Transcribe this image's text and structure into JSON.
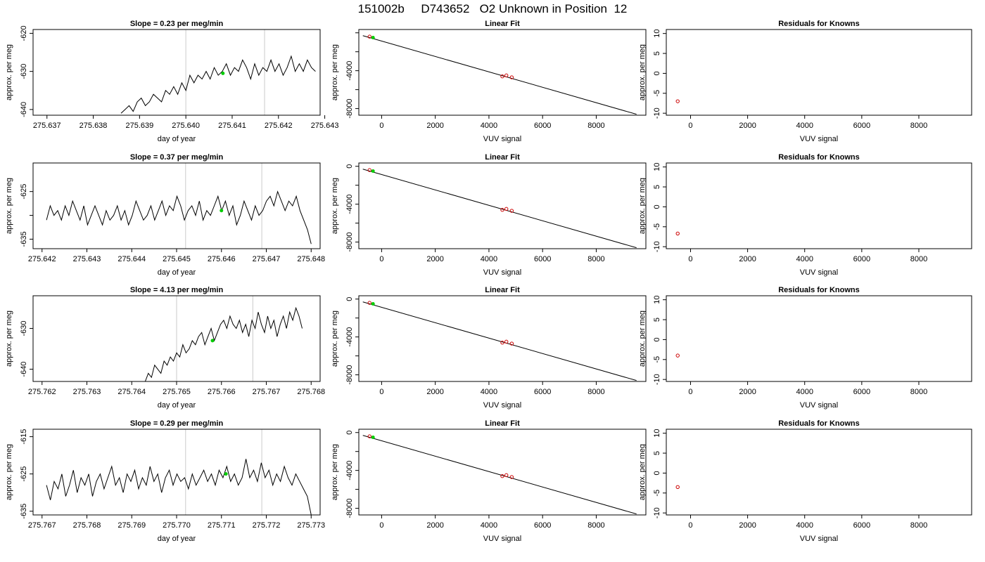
{
  "figure": {
    "title": "151002b     D743652   O2 Unknown in Position  12"
  },
  "chart_data": [
    {
      "type": "line",
      "row": 1,
      "title": "Slope =  0.23  per meg/min",
      "xlabel": "day of year",
      "ylabel": "approx. per meg",
      "xlim": [
        275.6367,
        275.6429
      ],
      "ylim": [
        -641.5,
        -619
      ],
      "xticks": [
        "275.637",
        "275.638",
        "275.639",
        "275.640",
        "275.641",
        "275.642",
        "275.643"
      ],
      "yticks": [
        -640,
        -630,
        -620
      ],
      "yticks_labeled": [
        -640,
        -630,
        -620
      ],
      "vlines": [
        275.64,
        275.6417
      ],
      "highlight": {
        "x": 275.6408,
        "y": -630.5
      },
      "series": [
        {
          "x_start": 275.6386,
          "x_end": 275.6428,
          "values": [
            -641,
            -640,
            -639,
            -640.5,
            -638,
            -637,
            -639,
            -638,
            -636,
            -637,
            -638,
            -635,
            -636,
            -634,
            -636,
            -633,
            -635,
            -631,
            -633,
            -631,
            -632,
            -630,
            -632,
            -629,
            -631,
            -630,
            -628,
            -631,
            -629,
            -630,
            -627,
            -629,
            -632,
            -628,
            -631,
            -629,
            -630,
            -627,
            -630,
            -628,
            -631,
            -629,
            -626,
            -630,
            -628,
            -630,
            -627,
            -629,
            -630
          ]
        }
      ]
    },
    {
      "type": "scatter",
      "row": 1,
      "title": "Linear Fit",
      "xlabel": "VUV signal",
      "ylabel": "approx. per meg",
      "xlim": [
        -850,
        9850
      ],
      "ylim": [
        -8700,
        350
      ],
      "xticks": [
        0,
        2000,
        4000,
        6000,
        8000
      ],
      "yticks": [
        0,
        -2000,
        -4000,
        -6000,
        -8000
      ],
      "yticks_labeled": [
        -4000,
        -8000
      ],
      "fit_line": {
        "x": [
          -700,
          9500
        ],
        "y": [
          -300,
          -8600
        ]
      },
      "points_red": [
        {
          "x": -450,
          "y": -400
        },
        {
          "x": 4500,
          "y": -4600
        },
        {
          "x": 4650,
          "y": -4500
        },
        {
          "x": 4850,
          "y": -4700
        }
      ],
      "points_green": [
        {
          "x": -320,
          "y": -500
        }
      ]
    },
    {
      "type": "scatter",
      "row": 1,
      "title": "Residuals for Knowns",
      "xlabel": "VUV signal",
      "ylabel": "approx. per meg",
      "xlim": [
        -850,
        9850
      ],
      "ylim": [
        -10.5,
        11
      ],
      "xticks": [
        0,
        2000,
        4000,
        6000,
        8000
      ],
      "yticks": [
        10,
        5,
        0,
        -5,
        -10
      ],
      "yticks_labeled": [
        10,
        5,
        0,
        -5,
        -10
      ],
      "points_red": [
        {
          "x": -450,
          "y": -7
        }
      ]
    },
    {
      "type": "line",
      "row": 2,
      "title": "Slope =  0.37  per meg/min",
      "xlabel": "day of year",
      "ylabel": "approx. per meg",
      "xlim": [
        275.6418,
        275.6482
      ],
      "ylim": [
        -637,
        -619
      ],
      "xticks": [
        "275.642",
        "275.643",
        "275.644",
        "275.645",
        "275.646",
        "275.647",
        "275.648"
      ],
      "yticks": [
        -635,
        -630,
        -625
      ],
      "yticks_labeled": [
        -635,
        -625
      ],
      "vlines": [
        275.6452,
        275.6469
      ],
      "highlight": {
        "x": 275.646,
        "y": -629
      },
      "series": [
        {
          "x_start": 275.6421,
          "x_end": 275.648,
          "values": [
            -631,
            -628,
            -630,
            -629,
            -631,
            -628,
            -630,
            -627,
            -629,
            -631,
            -628,
            -632,
            -630,
            -628,
            -630,
            -632,
            -629,
            -631,
            -630,
            -628,
            -631,
            -629,
            -632,
            -630,
            -627,
            -629,
            -631,
            -630,
            -628,
            -631,
            -629,
            -627,
            -630,
            -628,
            -629,
            -626,
            -628,
            -631,
            -629,
            -628,
            -630,
            -627,
            -631,
            -629,
            -630,
            -628,
            -626,
            -629,
            -627,
            -630,
            -628,
            -632,
            -630,
            -627,
            -629,
            -631,
            -628,
            -630,
            -629,
            -627,
            -626,
            -628,
            -625,
            -627,
            -629,
            -627,
            -628,
            -626,
            -629,
            -631,
            -633,
            -636
          ]
        }
      ]
    },
    {
      "type": "scatter",
      "row": 2,
      "title": "Linear Fit",
      "xlabel": "VUV signal",
      "ylabel": "approx. per meg",
      "xlim": [
        -850,
        9850
      ],
      "ylim": [
        -8700,
        350
      ],
      "xticks": [
        0,
        2000,
        4000,
        6000,
        8000
      ],
      "yticks": [
        0,
        -2000,
        -4000,
        -6000,
        -8000
      ],
      "yticks_labeled": [
        0,
        -4000,
        -8000
      ],
      "fit_line": {
        "x": [
          -700,
          9500
        ],
        "y": [
          -300,
          -8600
        ]
      },
      "points_red": [
        {
          "x": -450,
          "y": -400
        },
        {
          "x": 4500,
          "y": -4600
        },
        {
          "x": 4650,
          "y": -4500
        },
        {
          "x": 4850,
          "y": -4700
        }
      ],
      "points_green": [
        {
          "x": -320,
          "y": -500
        }
      ]
    },
    {
      "type": "scatter",
      "row": 2,
      "title": "Residuals for Knowns",
      "xlabel": "VUV signal",
      "ylabel": "approx. per meg",
      "xlim": [
        -850,
        9850
      ],
      "ylim": [
        -10.5,
        11
      ],
      "xticks": [
        0,
        2000,
        4000,
        6000,
        8000
      ],
      "yticks": [
        10,
        5,
        0,
        -5,
        -10
      ],
      "yticks_labeled": [
        10,
        5,
        0,
        -5,
        -10
      ],
      "points_red": [
        {
          "x": -450,
          "y": -6.7
        }
      ]
    },
    {
      "type": "line",
      "row": 3,
      "title": "Slope =  4.13  per meg/min",
      "xlabel": "day of year",
      "ylabel": "approx. per meg",
      "xlim": [
        275.7618,
        275.7682
      ],
      "ylim": [
        -643,
        -622
      ],
      "xticks": [
        "275.762",
        "275.763",
        "275.764",
        "275.765",
        "275.766",
        "275.767",
        "275.768"
      ],
      "yticks": [
        -640,
        -630
      ],
      "yticks_labeled": [
        -640,
        -630
      ],
      "vlines": [
        275.765,
        275.7667
      ],
      "highlight": {
        "x": 275.7658,
        "y": -633
      },
      "series": [
        {
          "x_start": 275.7643,
          "x_end": 275.7678,
          "values": [
            -643,
            -641,
            -642,
            -639,
            -640,
            -641,
            -638,
            -639,
            -637,
            -638,
            -636,
            -637,
            -634,
            -636,
            -635,
            -633,
            -634,
            -632,
            -631,
            -634,
            -632,
            -630,
            -633,
            -631,
            -629,
            -628,
            -630,
            -627,
            -629,
            -630,
            -628,
            -631,
            -629,
            -632,
            -628,
            -630,
            -626,
            -629,
            -631,
            -627,
            -630,
            -628,
            -632,
            -629,
            -627,
            -630,
            -626,
            -628,
            -625,
            -627,
            -630
          ]
        }
      ]
    },
    {
      "type": "scatter",
      "row": 3,
      "title": "Linear Fit",
      "xlabel": "VUV signal",
      "ylabel": "approx. per meg",
      "xlim": [
        -850,
        9850
      ],
      "ylim": [
        -8700,
        350
      ],
      "xticks": [
        0,
        2000,
        4000,
        6000,
        8000
      ],
      "yticks": [
        0,
        -2000,
        -4000,
        -6000,
        -8000
      ],
      "yticks_labeled": [
        0,
        -4000,
        -8000
      ],
      "fit_line": {
        "x": [
          -700,
          9500
        ],
        "y": [
          -300,
          -8600
        ]
      },
      "points_red": [
        {
          "x": -450,
          "y": -400
        },
        {
          "x": 4500,
          "y": -4600
        },
        {
          "x": 4650,
          "y": -4500
        },
        {
          "x": 4850,
          "y": -4700
        }
      ],
      "points_green": [
        {
          "x": -320,
          "y": -500
        }
      ]
    },
    {
      "type": "scatter",
      "row": 3,
      "title": "Residuals for Knowns",
      "xlabel": "VUV signal",
      "ylabel": "approx. per meg",
      "xlim": [
        -850,
        9850
      ],
      "ylim": [
        -10.5,
        11
      ],
      "xticks": [
        0,
        2000,
        4000,
        6000,
        8000
      ],
      "yticks": [
        10,
        5,
        0,
        -5,
        -10
      ],
      "yticks_labeled": [
        10,
        5,
        0,
        -5,
        -10
      ],
      "points_red": [
        {
          "x": -450,
          "y": -4
        }
      ]
    },
    {
      "type": "line",
      "row": 4,
      "title": "Slope =  0.29  per meg/min",
      "xlabel": "day of year",
      "ylabel": "approx. per meg",
      "xlim": [
        275.7668,
        275.7732
      ],
      "ylim": [
        -636,
        -613
      ],
      "xticks": [
        "275.767",
        "275.768",
        "275.769",
        "275.770",
        "275.771",
        "275.772",
        "275.773"
      ],
      "yticks": [
        -635,
        -625,
        -615
      ],
      "yticks_labeled": [
        -635,
        -625,
        -615
      ],
      "vlines": [
        275.7702,
        275.7719
      ],
      "highlight": {
        "x": 275.7711,
        "y": -625
      },
      "series": [
        {
          "x_start": 275.7671,
          "x_end": 275.773,
          "values": [
            -628,
            -632,
            -627,
            -629,
            -625,
            -631,
            -628,
            -624,
            -630,
            -626,
            -628,
            -625,
            -631,
            -627,
            -625,
            -629,
            -626,
            -623,
            -628,
            -626,
            -630,
            -625,
            -627,
            -624,
            -629,
            -626,
            -628,
            -623,
            -627,
            -625,
            -630,
            -626,
            -624,
            -628,
            -625,
            -627,
            -626,
            -629,
            -625,
            -628,
            -626,
            -624,
            -627,
            -625,
            -628,
            -624,
            -626,
            -623,
            -627,
            -625,
            -628,
            -626,
            -621,
            -626,
            -624,
            -627,
            -622,
            -626,
            -624,
            -628,
            -625,
            -627,
            -623,
            -626,
            -628,
            -625,
            -627,
            -629,
            -631,
            -636
          ]
        }
      ]
    },
    {
      "type": "scatter",
      "row": 4,
      "title": "Linear Fit",
      "xlabel": "VUV signal",
      "ylabel": "approx. per meg",
      "xlim": [
        -850,
        9850
      ],
      "ylim": [
        -8700,
        350
      ],
      "xticks": [
        0,
        2000,
        4000,
        6000,
        8000
      ],
      "yticks": [
        0,
        -2000,
        -4000,
        -6000,
        -8000
      ],
      "yticks_labeled": [
        0,
        -4000,
        -8000
      ],
      "fit_line": {
        "x": [
          -700,
          9500
        ],
        "y": [
          -300,
          -8600
        ]
      },
      "points_red": [
        {
          "x": -450,
          "y": -400
        },
        {
          "x": 4500,
          "y": -4600
        },
        {
          "x": 4650,
          "y": -4500
        },
        {
          "x": 4850,
          "y": -4700
        }
      ],
      "points_green": [
        {
          "x": -320,
          "y": -500
        }
      ]
    },
    {
      "type": "scatter",
      "row": 4,
      "title": "Residuals for Knowns",
      "xlabel": "VUV signal",
      "ylabel": "approx. per meg",
      "xlim": [
        -850,
        9850
      ],
      "ylim": [
        -10.5,
        11
      ],
      "xticks": [
        0,
        2000,
        4000,
        6000,
        8000
      ],
      "yticks": [
        10,
        5,
        0,
        -5,
        -10
      ],
      "yticks_labeled": [
        10,
        5,
        0,
        -5,
        -10
      ],
      "points_red": [
        {
          "x": -450,
          "y": -3.5
        }
      ]
    }
  ],
  "colors": {
    "line": "#000000",
    "vline": "#d3d3d3",
    "fit_point": "#cc0000",
    "unknown_point": "#00cc00"
  }
}
